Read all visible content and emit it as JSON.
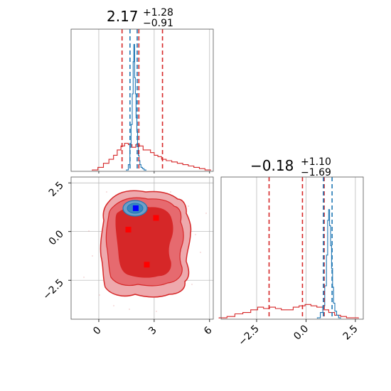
{
  "chart_data": {
    "type": "corner",
    "colors": {
      "red": "#d62728",
      "blue": "#1f77b4",
      "grid": "#b0b0b0",
      "marker_blue": "#0000ff",
      "marker_red": "#ff0000"
    },
    "panels": [
      {
        "id": "hist-x",
        "type": "histogram",
        "title": {
          "value": "2.17",
          "plus": "+1.28",
          "minus": "−0.91"
        },
        "xlim": [
          -1.5,
          6.2
        ],
        "xticks": [
          0,
          3,
          6
        ],
        "quantile_lines": [
          {
            "series": "red",
            "x": [
              1.26,
              2.17,
              3.45
            ]
          },
          {
            "series": "blue",
            "x": [
              1.69,
              2.08
            ]
          }
        ],
        "series": [
          {
            "name": "",
            "color": "red",
            "x": [
              -0.2,
              0.1,
              0.4,
              0.7,
              0.9,
              1.1,
              1.3,
              1.5,
              1.7,
              1.9,
              2.1,
              2.3,
              2.5,
              2.7,
              2.9,
              3.1,
              3.3,
              3.5,
              3.8,
              4.1,
              4.4,
              4.7,
              5.0,
              5.3,
              5.6,
              5.9
            ],
            "y": [
              0.01,
              0.03,
              0.06,
              0.09,
              0.12,
              0.16,
              0.19,
              0.21,
              0.2,
              0.18,
              0.2,
              0.19,
              0.16,
              0.16,
              0.14,
              0.12,
              0.11,
              0.09,
              0.08,
              0.07,
              0.06,
              0.05,
              0.04,
              0.03,
              0.02,
              0.01
            ]
          },
          {
            "name": "",
            "color": "blue",
            "x": [
              1.55,
              1.65,
              1.72,
              1.78,
              1.84,
              1.88,
              1.92,
              1.96,
              2.0,
              2.04,
              2.08,
              2.12,
              2.16,
              2.2,
              2.25,
              2.32,
              2.4,
              2.5
            ],
            "y": [
              0.01,
              0.05,
              0.18,
              0.35,
              0.58,
              0.82,
              0.95,
              0.7,
              0.58,
              0.4,
              0.3,
              0.2,
              0.12,
              0.08,
              0.05,
              0.03,
              0.02,
              0.01
            ]
          }
        ]
      },
      {
        "id": "hist-y",
        "type": "histogram",
        "title": {
          "value": "−0.18",
          "plus": "+1.10",
          "minus": "−1.69"
        },
        "xlim": [
          -4.3,
          2.9
        ],
        "xticks": [
          -2.5,
          0.0,
          2.5
        ],
        "xtick_labels": [
          "−2.5",
          "0.0",
          "2.5"
        ],
        "quantile_lines": [
          {
            "series": "red",
            "x": [
              -1.87,
              -0.18,
              0.92
            ]
          },
          {
            "series": "blue",
            "x": [
              0.88,
              1.32
            ]
          }
        ],
        "series": [
          {
            "name": "",
            "color": "red",
            "x": [
              -4.2,
              -3.8,
              -3.4,
              -3.0,
              -2.6,
              -2.3,
              -2.0,
              -1.7,
              -1.4,
              -1.1,
              -0.8,
              -0.5,
              -0.2,
              0.1,
              0.4,
              0.7,
              1.0,
              1.3,
              1.6,
              1.9,
              2.2,
              2.5
            ],
            "y": [
              0.01,
              0.02,
              0.04,
              0.05,
              0.07,
              0.09,
              0.08,
              0.09,
              0.08,
              0.07,
              0.07,
              0.09,
              0.1,
              0.11,
              0.1,
              0.09,
              0.07,
              0.05,
              0.03,
              0.02,
              0.01,
              0.01
            ]
          },
          {
            "name": "",
            "color": "blue",
            "x": [
              0.65,
              0.8,
              0.9,
              1.0,
              1.07,
              1.12,
              1.17,
              1.22,
              1.27,
              1.32,
              1.37,
              1.42,
              1.5,
              1.6,
              1.7
            ],
            "y": [
              0.01,
              0.05,
              0.1,
              0.25,
              0.48,
              0.74,
              0.82,
              0.7,
              0.55,
              0.38,
              0.24,
              0.12,
              0.06,
              0.03,
              0.01
            ]
          }
        ]
      },
      {
        "id": "scatter-2d",
        "type": "contour2d",
        "xlim": [
          -1.5,
          6.2
        ],
        "ylim": [
          -4.5,
          2.8
        ],
        "xticks": [
          0,
          3,
          6
        ],
        "yticks": [
          2.5,
          0.0,
          -2.5
        ],
        "ytick_labels": [
          "2.5",
          "0.0",
          "−2.5"
        ],
        "markers": [
          {
            "color": "marker_blue",
            "x": 2.0,
            "y": 1.2
          },
          {
            "color": "marker_red",
            "x": 1.6,
            "y": 0.1
          },
          {
            "color": "marker_red",
            "x": 3.1,
            "y": 0.7
          },
          {
            "color": "marker_red",
            "x": 2.6,
            "y": -1.7
          }
        ]
      }
    ]
  }
}
